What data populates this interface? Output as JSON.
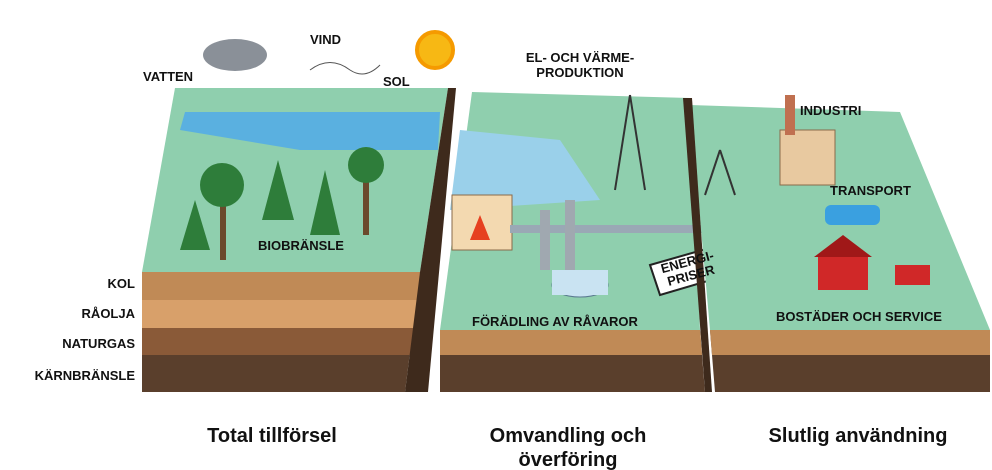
{
  "labels": {
    "vatten": "VATTEN",
    "vind": "VIND",
    "sol": "SOL",
    "el_varme": [
      "EL- OCH VÄRME-",
      "PRODUKTION"
    ],
    "industri": "INDUSTRI",
    "transport": "TRANSPORT",
    "biobransle": "BIOBRÄNSLE",
    "kol": "KOL",
    "raolja": "RÅOLJA",
    "naturgas": "NATURGAS",
    "karnbransle": "KÄRNBRÄNSLE",
    "energipriser": [
      "ENERGI-",
      "PRISER"
    ],
    "foradling": "FÖRÄDLING AV RÅVAROR",
    "bostader": "BOSTÄDER OCH SERVICE"
  },
  "captions": {
    "supply": "Total tillförsel",
    "conversion": [
      "Omvandling och",
      "överföring"
    ],
    "use": "Slutlig användning"
  }
}
